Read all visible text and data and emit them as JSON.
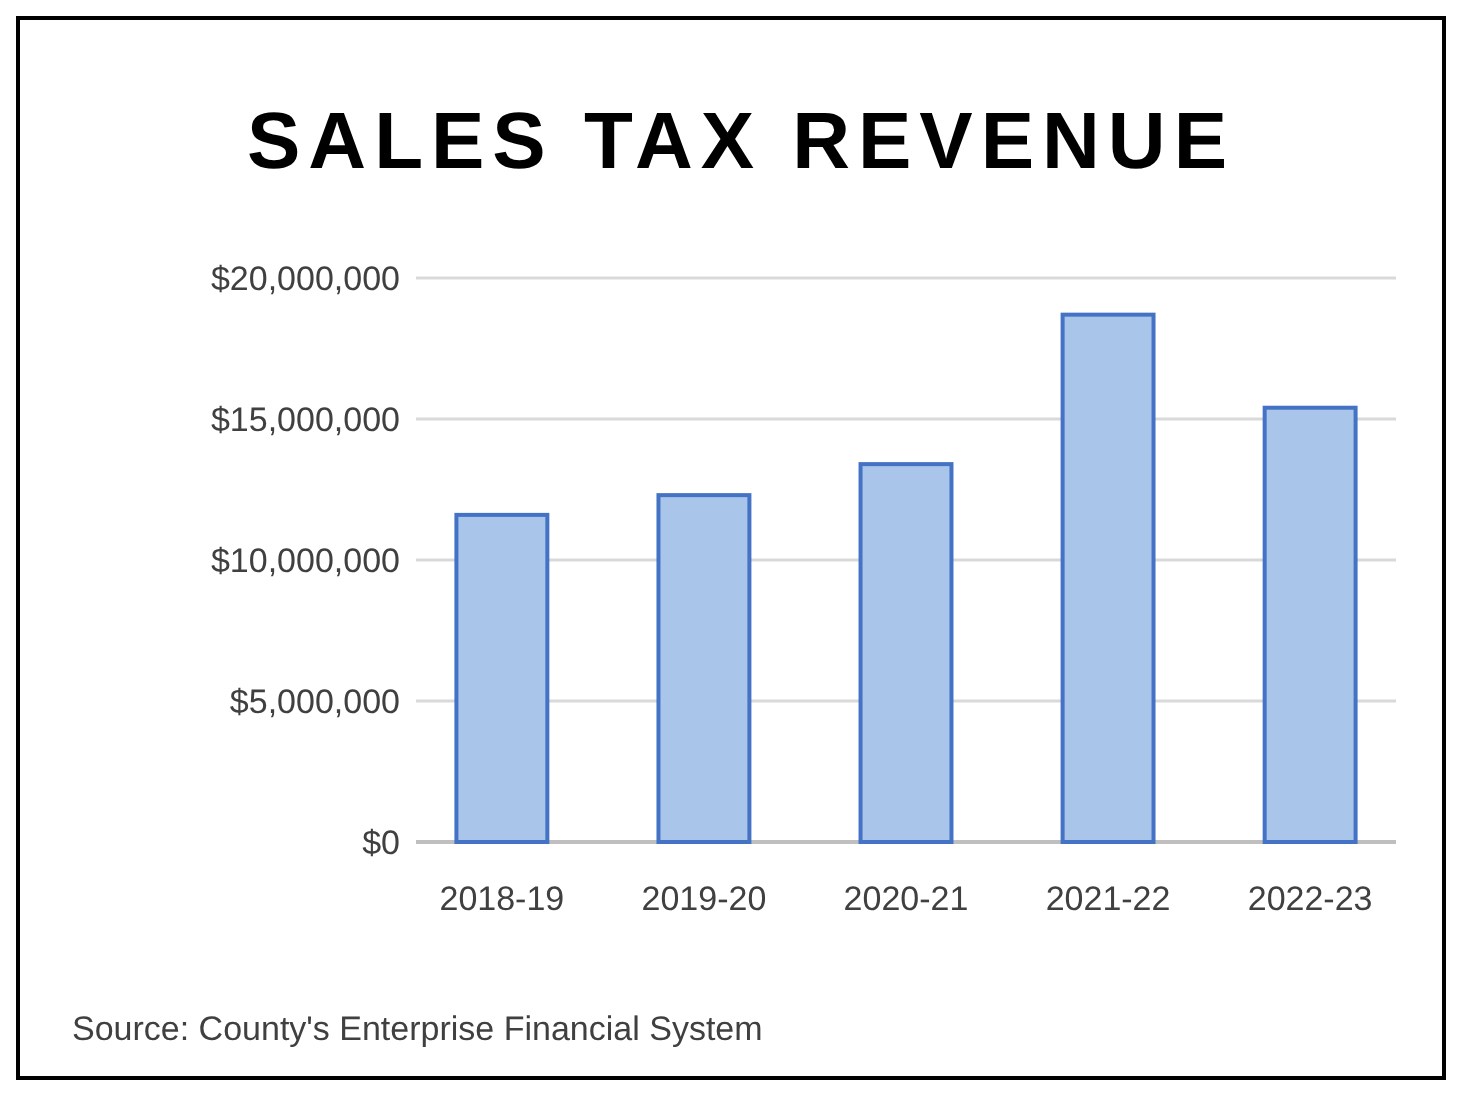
{
  "chart_data": {
    "type": "bar",
    "title": "SALES TAX REVENUE",
    "categories": [
      "2018-19",
      "2019-20",
      "2020-21",
      "2021-22",
      "2022-23"
    ],
    "values": [
      11600000,
      12300000,
      13400000,
      18700000,
      15400000
    ],
    "color": "#a9c6ea",
    "ylim": [
      0,
      20000000
    ],
    "yticks": [
      {
        "value": 0,
        "label": "$0"
      },
      {
        "value": 5000000,
        "label": "$5,000,000"
      },
      {
        "value": 10000000,
        "label": "$10,000,000"
      },
      {
        "value": 15000000,
        "label": "$15,000,000"
      },
      {
        "value": 20000000,
        "label": "$20,000,000"
      }
    ],
    "grid": "y",
    "annotations": [
      "Source: County's Enterprise Financial System"
    ]
  }
}
